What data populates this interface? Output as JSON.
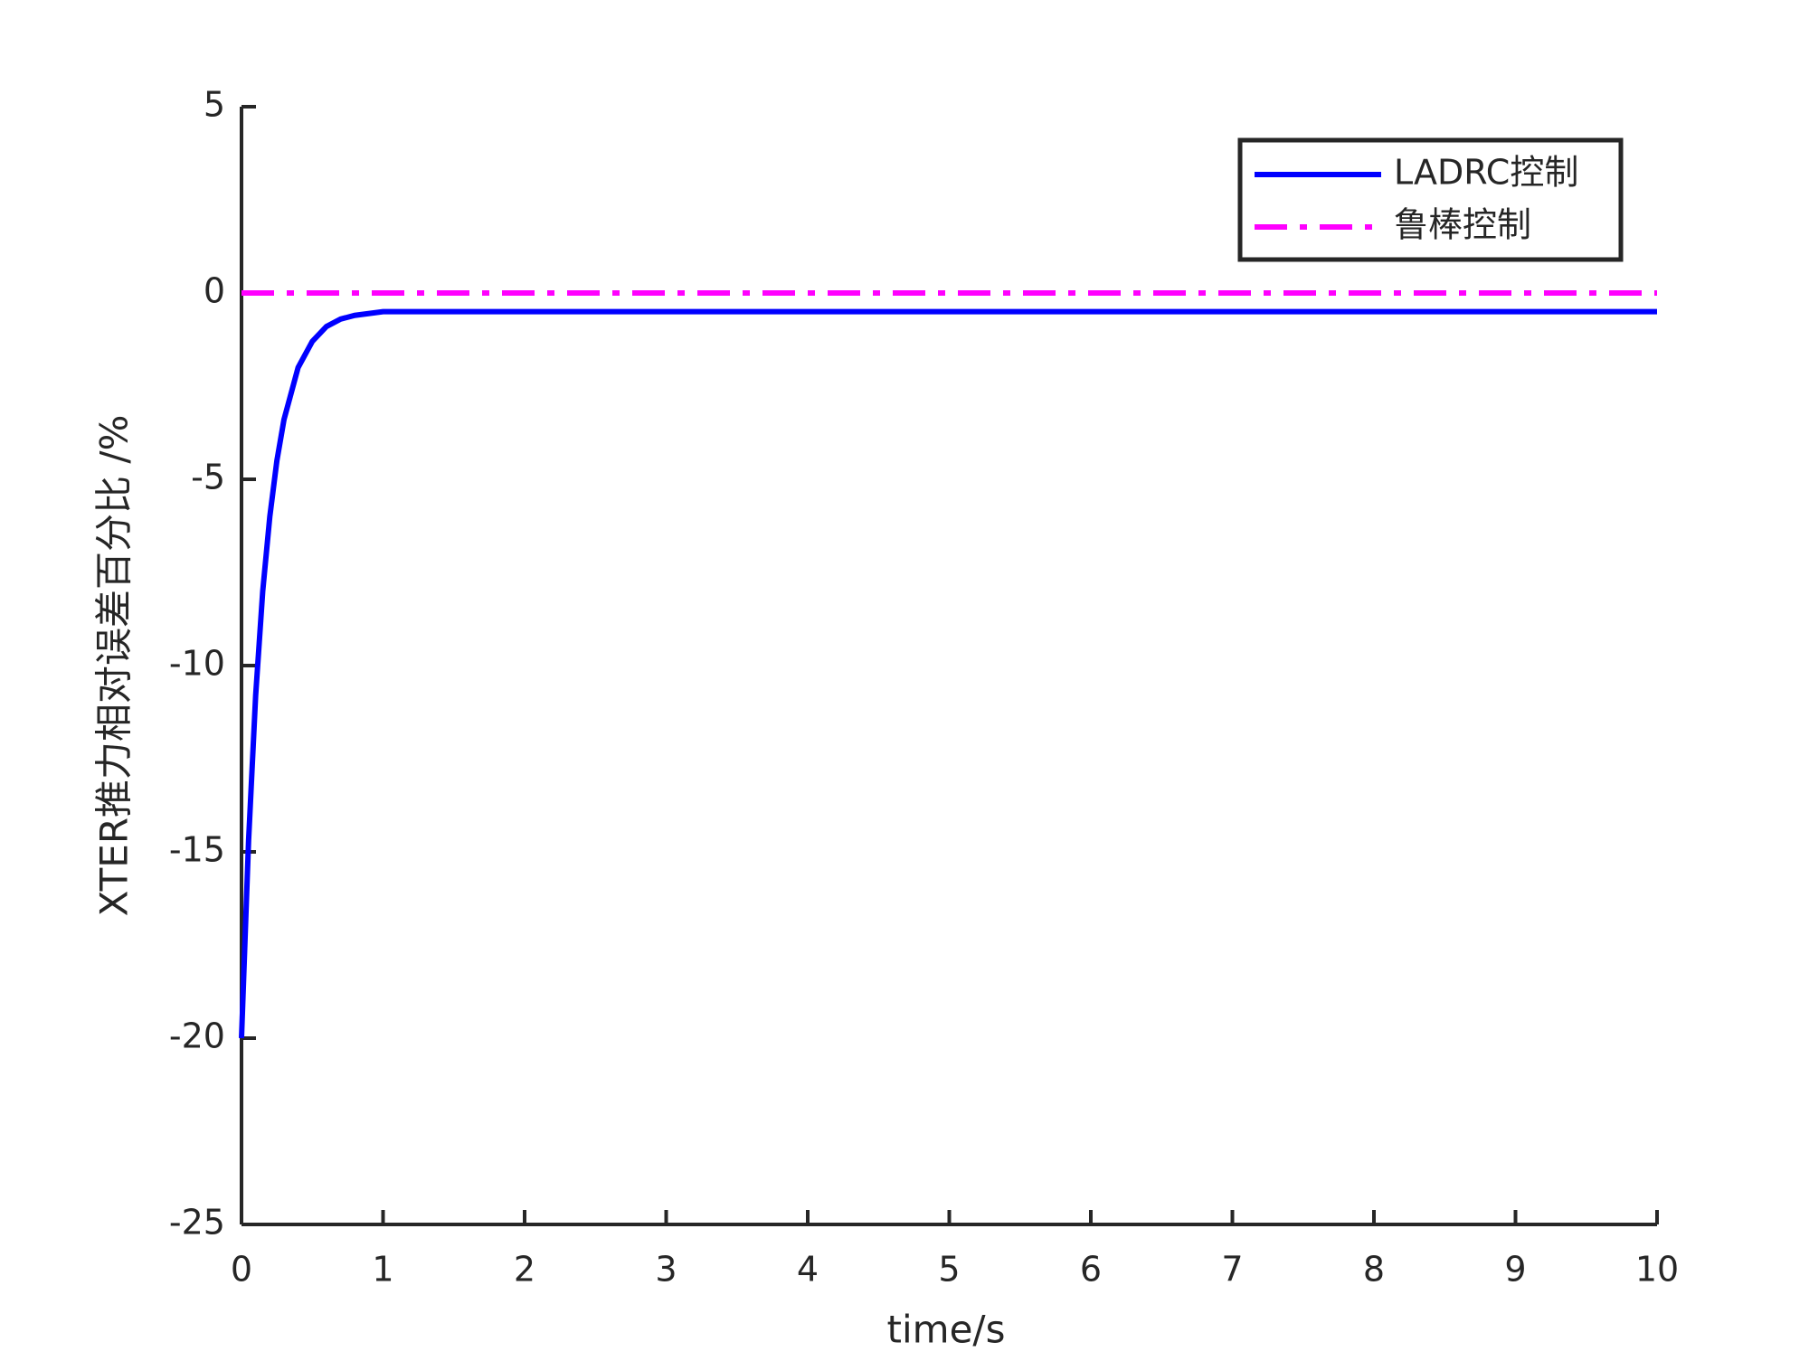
{
  "chart_data": {
    "type": "line",
    "x_label": "time/s",
    "y_label": "XTER推力相对误差百分比 /%",
    "series": [
      {
        "name": "LADRC控制",
        "color": "#0000ff",
        "line_style": "solid",
        "x": [
          0,
          0.05,
          0.1,
          0.15,
          0.2,
          0.25,
          0.3,
          0.4,
          0.5,
          0.6,
          0.7,
          0.8,
          1,
          1.5,
          2,
          3,
          4,
          5,
          6,
          7,
          8,
          9,
          10
        ],
        "values": [
          -20,
          -14.7,
          -10.8,
          -8.0,
          -6.0,
          -4.5,
          -3.4,
          -2.0,
          -1.3,
          -0.9,
          -0.7,
          -0.6,
          -0.5,
          -0.5,
          -0.5,
          -0.5,
          -0.5,
          -0.5,
          -0.5,
          -0.5,
          -0.5,
          -0.5,
          -0.5
        ]
      },
      {
        "name": "鲁棒控制",
        "color": "#ff00ff",
        "line_style": "dashdot",
        "x": [
          0,
          10
        ],
        "values": [
          0,
          0
        ]
      }
    ],
    "xlim": [
      0,
      10
    ],
    "xticks": [
      0,
      1,
      2,
      3,
      4,
      5,
      6,
      7,
      8,
      9,
      10
    ],
    "ylim": [
      -25,
      5
    ],
    "yticks": [
      -25,
      -20,
      -15,
      -10,
      -5,
      0,
      5
    ],
    "legend": "northeast",
    "grid": false
  }
}
